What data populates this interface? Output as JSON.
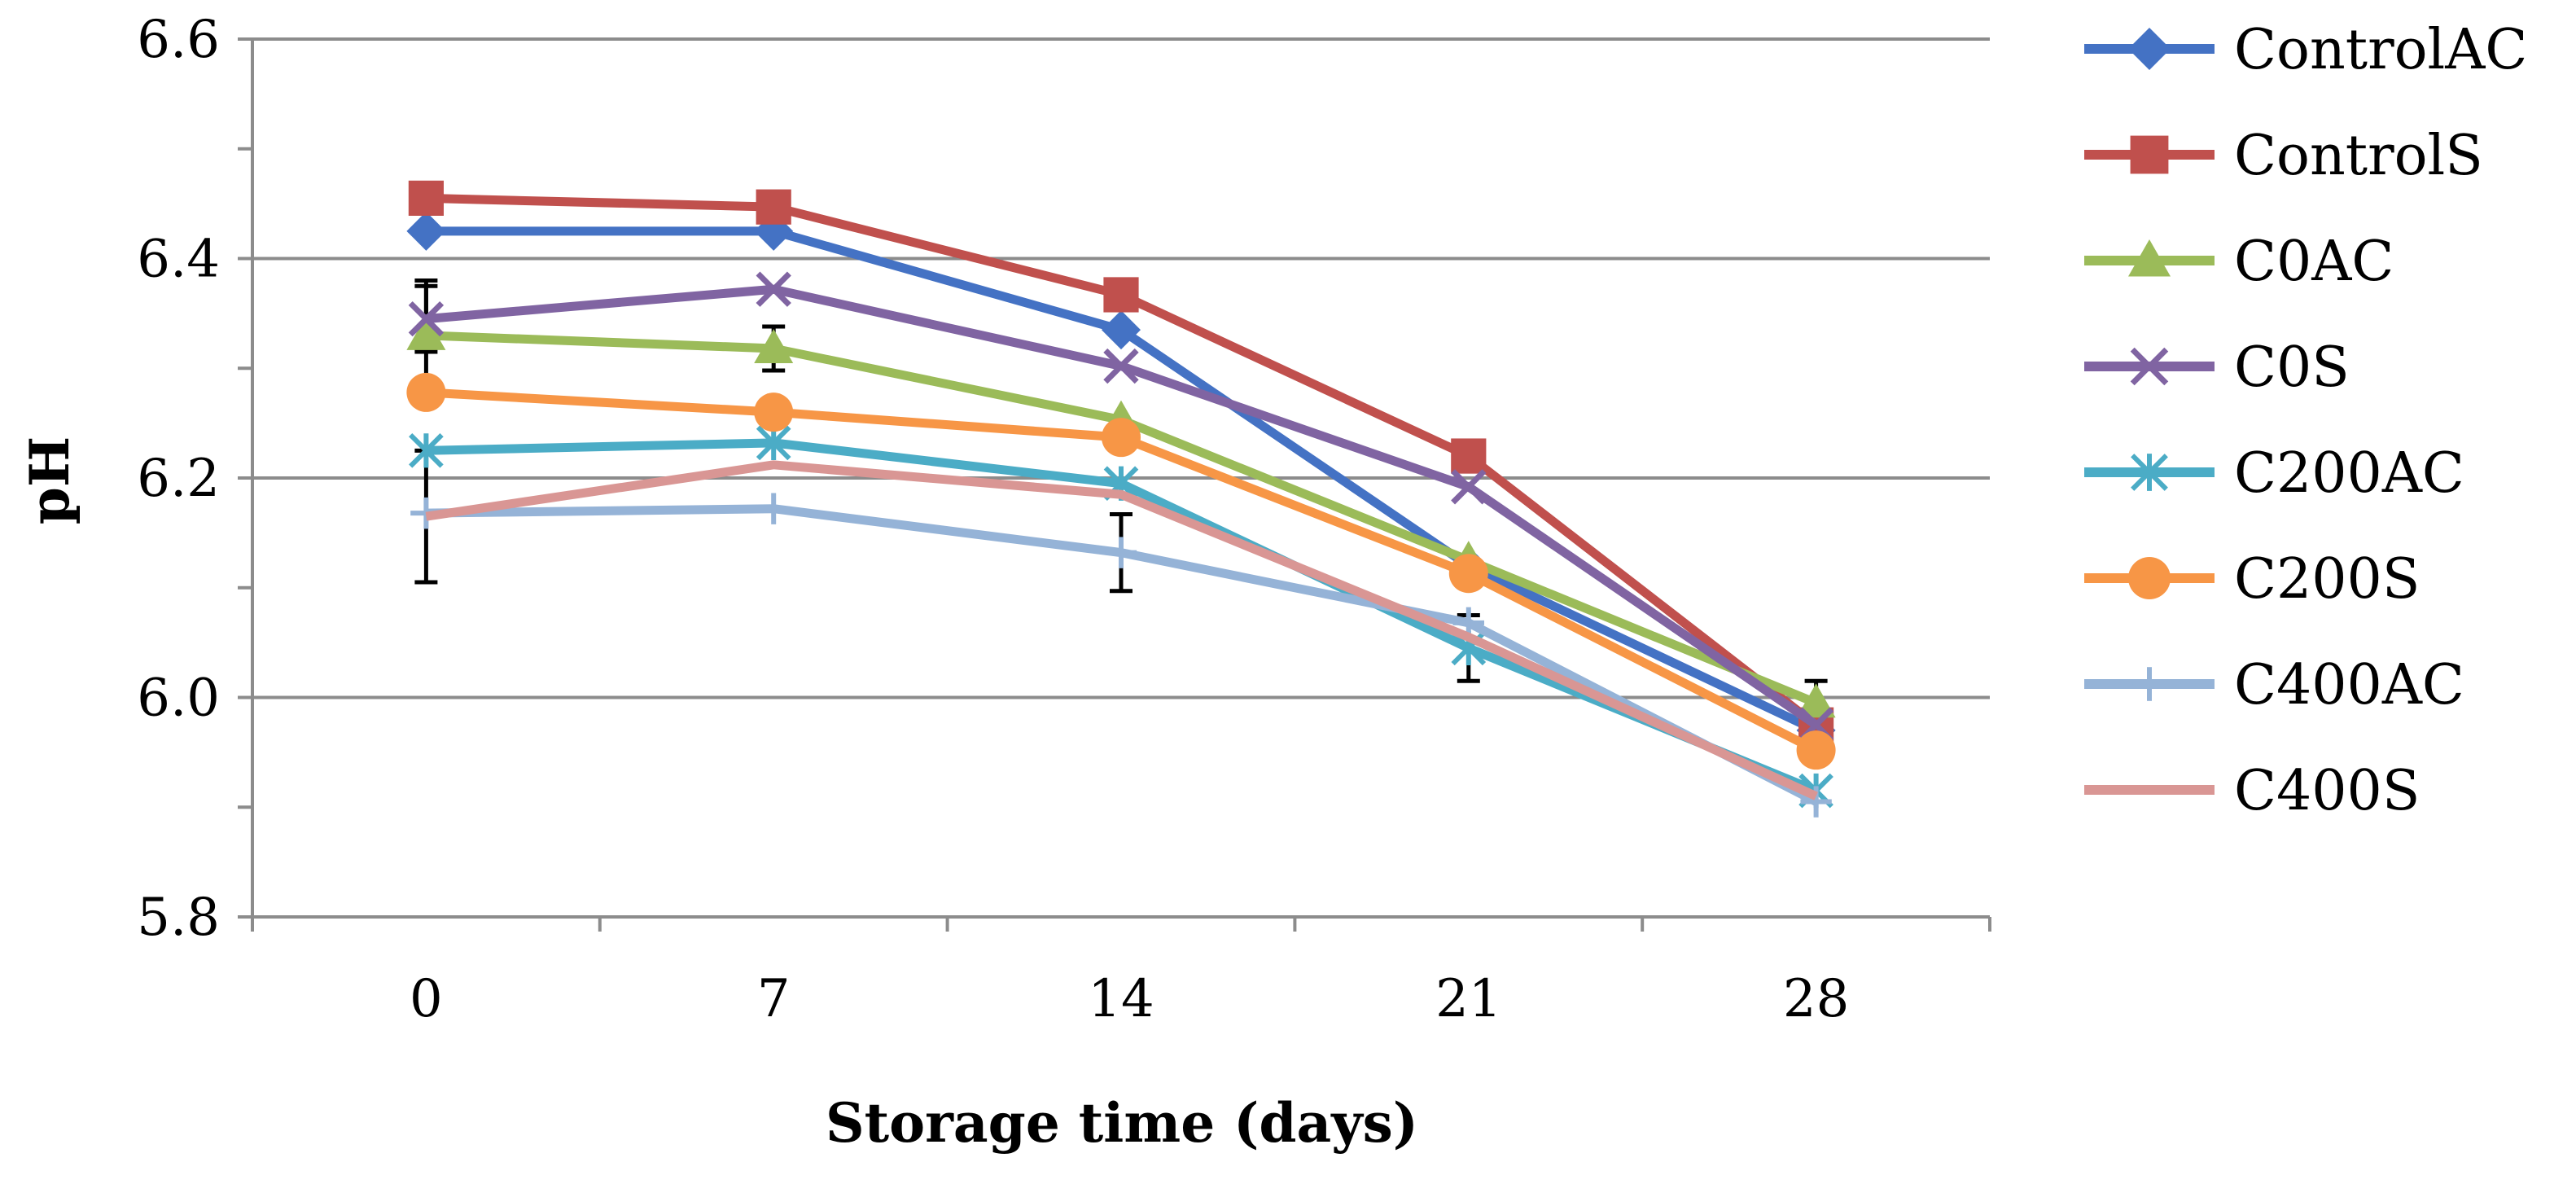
{
  "chart_data": {
    "type": "line",
    "title": "",
    "xlabel": "Storage time (days)",
    "ylabel": "pH",
    "categories": [
      "0",
      "7",
      "14",
      "21",
      "28"
    ],
    "ylim": [
      5.8,
      6.6
    ],
    "yticks": [
      "6.6",
      "6.4",
      "6.2",
      "6.0",
      "5.8"
    ],
    "ytick_values": [
      6.6,
      6.4,
      6.2,
      6.0,
      5.8
    ],
    "grid": true,
    "legend_position": "right",
    "series": [
      {
        "name": "ControlAC",
        "color": "#4472C4",
        "marker": "diamond",
        "values": [
          6.425,
          6.425,
          6.335,
          6.12,
          5.97
        ],
        "errors": [
          0.0,
          0.0,
          0.0,
          0.0,
          0.0
        ]
      },
      {
        "name": "ControlS",
        "color": "#C0504D",
        "marker": "square",
        "values": [
          6.455,
          6.447,
          6.367,
          6.22,
          5.975
        ],
        "errors": [
          0.0,
          0.0,
          0.0,
          0.0,
          0.0
        ]
      },
      {
        "name": "C0AC",
        "color": "#9BBB59",
        "marker": "triangle",
        "values": [
          6.33,
          6.318,
          6.253,
          6.125,
          5.995
        ],
        "errors": [
          0.05,
          0.02,
          0.0,
          0.0,
          0.02
        ]
      },
      {
        "name": "C0S",
        "color": "#8064A2",
        "marker": "x",
        "values": [
          6.345,
          6.372,
          6.302,
          6.192,
          5.975
        ],
        "errors": [
          0.03,
          0.0,
          0.0,
          0.0,
          0.0
        ]
      },
      {
        "name": "C200AC",
        "color": "#4BACC6",
        "marker": "star",
        "values": [
          6.225,
          6.232,
          6.195,
          6.045,
          5.915
        ],
        "errors": [
          0.0,
          0.0,
          0.0,
          0.03,
          0.0
        ]
      },
      {
        "name": "C200S",
        "color": "#F79646",
        "marker": "circle",
        "values": [
          6.278,
          6.26,
          6.237,
          6.113,
          5.952
        ],
        "errors": [
          0.0,
          0.0,
          0.0,
          0.0,
          0.0
        ]
      },
      {
        "name": "C400AC",
        "color": "#95B3D7",
        "marker": "plus",
        "values": [
          6.168,
          6.172,
          6.132,
          6.068,
          5.905
        ],
        "errors": [
          0.0,
          0.0,
          0.035,
          0.0,
          0.0
        ]
      },
      {
        "name": "C400S",
        "color": "#D99694",
        "marker": "none",
        "values": [
          6.165,
          6.212,
          6.185,
          6.055,
          5.91
        ],
        "errors": [
          0.06,
          0.0,
          0.0,
          0.0,
          0.0
        ]
      }
    ]
  }
}
